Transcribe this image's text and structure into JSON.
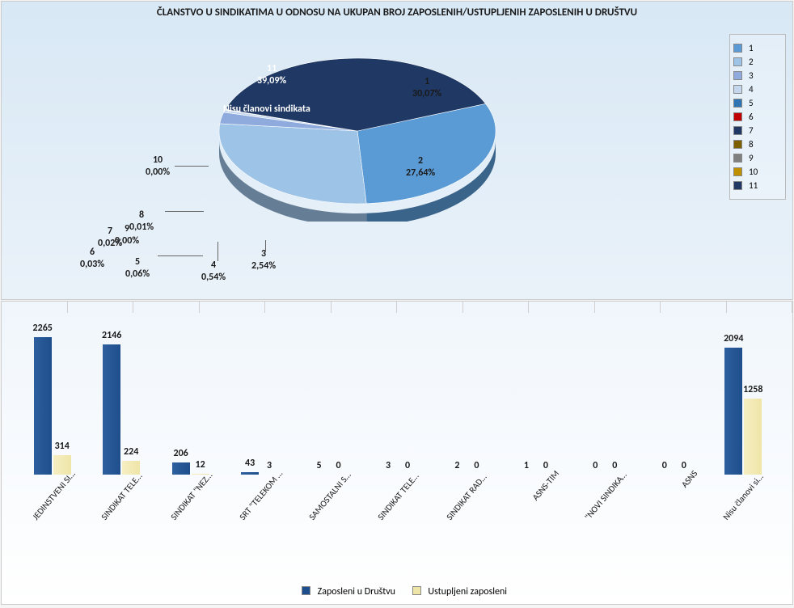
{
  "pie_chart": {
    "type": "pie-3d",
    "title": "ČLANSTVO U SINDIKATIMA U ODNOSU NA UKUPAN BROJ ZAPOSLENIH/USTUPLJENIH ZAPOSLENIH U DRUŠTVU",
    "title_fontsize": 13,
    "background_gradient": [
      "#d8e8f5",
      "#eaf2f9"
    ],
    "legend_position": "right",
    "annotation": {
      "id": "11",
      "label": "Nisu članovi sindikata"
    },
    "slices": [
      {
        "id": "1",
        "percent": "30,07%",
        "value": 30.07,
        "color": "#5b9bd5",
        "legend": "1"
      },
      {
        "id": "2",
        "percent": "27,64%",
        "value": 27.64,
        "color": "#9dc3e6",
        "legend": "2"
      },
      {
        "id": "3",
        "percent": "2,54%",
        "value": 2.54,
        "color": "#8faadc",
        "legend": "3"
      },
      {
        "id": "4",
        "percent": "0,54%",
        "value": 0.54,
        "color": "#c4d7ed",
        "legend": "4"
      },
      {
        "id": "5",
        "percent": "0,06%",
        "value": 0.06,
        "color": "#2e74b5",
        "legend": "5"
      },
      {
        "id": "6",
        "percent": "0,03%",
        "value": 0.03,
        "color": "#c00000",
        "legend": "6"
      },
      {
        "id": "7",
        "percent": "0,02%",
        "value": 0.02,
        "color": "#203864",
        "legend": "7"
      },
      {
        "id": "8",
        "percent": "0,01%",
        "value": 0.01,
        "color": "#7f6000",
        "legend": "8"
      },
      {
        "id": "9",
        "percent": "0,00%",
        "value": 0.0,
        "color": "#808080",
        "legend": "9"
      },
      {
        "id": "10",
        "percent": "0,00%",
        "value": 0.0,
        "color": "#bf9000",
        "legend": "10"
      },
      {
        "id": "11",
        "percent": "39,09%",
        "value": 39.09,
        "color": "#1f3864",
        "legend": "11"
      }
    ]
  },
  "bar_chart": {
    "type": "grouped-bar",
    "background_gradient": [
      "#f0f6fc",
      "#ffffff"
    ],
    "y_max": 2265,
    "label_fontsize": 12,
    "x_label_rotation": -50,
    "series": [
      {
        "key": "a",
        "name": "Zaposleni u Društvu",
        "color": "#1f4e8c"
      },
      {
        "key": "b",
        "name": "Ustupljeni zaposleni",
        "color": "#efe5a8"
      }
    ],
    "categories": [
      {
        "label": "JEDINSTVENI SINDIKAT ...",
        "a": 2265,
        "b": 314
      },
      {
        "label": "SINDIKAT TELEKOMA \"SRBIJA\"",
        "a": 2146,
        "b": 224
      },
      {
        "label": "SINDIKAT \"NEZAVISNOST\"",
        "a": 206,
        "b": 12
      },
      {
        "label": "SRT \"TELEKOM SRBIJA\" A.D",
        "a": 43,
        "b": 3
      },
      {
        "label": "SAMOSTALNI SINDIKAT ...",
        "a": 5,
        "b": 0
      },
      {
        "label": "SINDIKAT TELEKOMA...",
        "a": 3,
        "b": 0
      },
      {
        "label": "SINDIKAT RADNIKA TELEKOMA",
        "a": 2,
        "b": 0
      },
      {
        "label": "ASNS-TIM",
        "a": 1,
        "b": 0
      },
      {
        "label": "\"NOVI SINDIKAT TELEKOM\"",
        "a": 0,
        "b": 0
      },
      {
        "label": "ASNS",
        "a": 0,
        "b": 0
      },
      {
        "label": "Nisu članovi sindikata",
        "a": 2094,
        "b": 1258
      }
    ]
  }
}
